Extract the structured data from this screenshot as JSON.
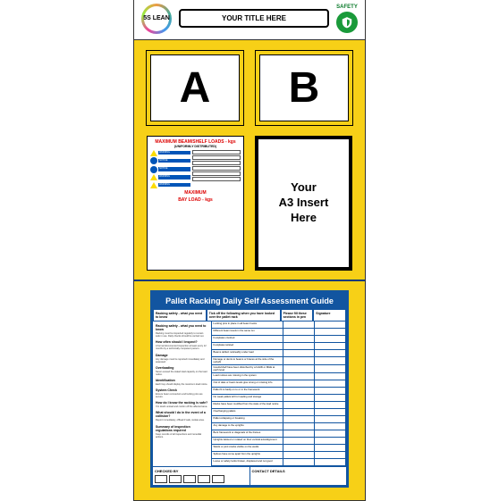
{
  "header": {
    "logo_text": "5S\nLEAN",
    "title_slot": "YOUR TITLE HERE",
    "safety_label": "SAFETY"
  },
  "ab": {
    "a": "A",
    "b": "B"
  },
  "load_sign": {
    "title": "MAXIMUM BEAM/SHELF LOADS - kgs",
    "subtitle": "(UNIFORMLY DISTRIBUTED)",
    "title2": "MAXIMUM",
    "title2b": "BAY LOAD - kgs"
  },
  "a3_insert": "Your\nA3 Insert\nHere",
  "guide": {
    "title": "Pallet Racking Daily Self Assessment Guide",
    "head": [
      "",
      "Examples of what to look out for",
      "Mark position and report here",
      ""
    ],
    "head_sub": [
      "Racking safety - what you need to know",
      "Tick off the following when you have looked over the pallet rack",
      "Please fill these sections in pen",
      "Signature"
    ],
    "left_sections": [
      {
        "h": "Racking safety - what you need to know",
        "p": "Racking must be inspected regularly to remain safe in use. Daily checks should be carried out."
      },
      {
        "h": "How often should I inspect?",
        "p": "A formal documented inspection at least every 12 months by a technically competent person."
      },
      {
        "h": "Damage",
        "p": "Any damage must be reported immediately and assessed."
      },
      {
        "h": "Overloading",
        "p": "Never exceed the stated load capacity on the load notice."
      },
      {
        "h": "Identification",
        "p": "Each bay should display the maximum load notice."
      },
      {
        "h": "System Check",
        "p": "Ensure beam connectors and locking pins are secure."
      },
      {
        "h": "How do I know the racking is safe?",
        "p": "If in doubt unload and cordon off the affected area."
      },
      {
        "h": "What should I do in the event of a collision?",
        "p": "Report immediately, offload if safe, isolate area."
      },
      {
        "h": "Summary of inspection regulations required",
        "p": "Keep records of all inspections and remedial actions."
      }
    ],
    "rows": [
      "Locking pins in place in all beam hooks",
      "Different beam levels in the same run",
      "Footplates crushed",
      "Footplates twisted",
      "Beams deflect noticeably under load",
      "Damage or dents to beams or braces at the side of the upright",
      "Goods/shelf have been disturbed by a forklift or MHE at each level",
      "Load notices are missing in the system",
      "Out of date or beam levels give wrong or missing info",
      "Pallet fit is badly on to or in the framework",
      "No weak pallets left for loading and storage",
      "Racks have been modified from the state of the load notice",
      "Overhanging pallets",
      "Pallet collapsing or breaking",
      "Any damage to the uprights",
      "Bent framework or diagonals of the frames",
      "Uprights twisted or rotated on their vertical axis/alignment",
      "Welds or joint cracks visible on the welds",
      "Splices have come apart from the uprights",
      "Loose or safety locks broken, displaced and not good"
    ],
    "checked_label": "CHECKED BY",
    "contact_label": "CONTACT DETAILS"
  },
  "colors": {
    "board_bg": "#f7d017",
    "blue": "#1255a0",
    "orange": "#f7a74a",
    "red": "#d00000",
    "safety_green": "#1a9a3a"
  }
}
